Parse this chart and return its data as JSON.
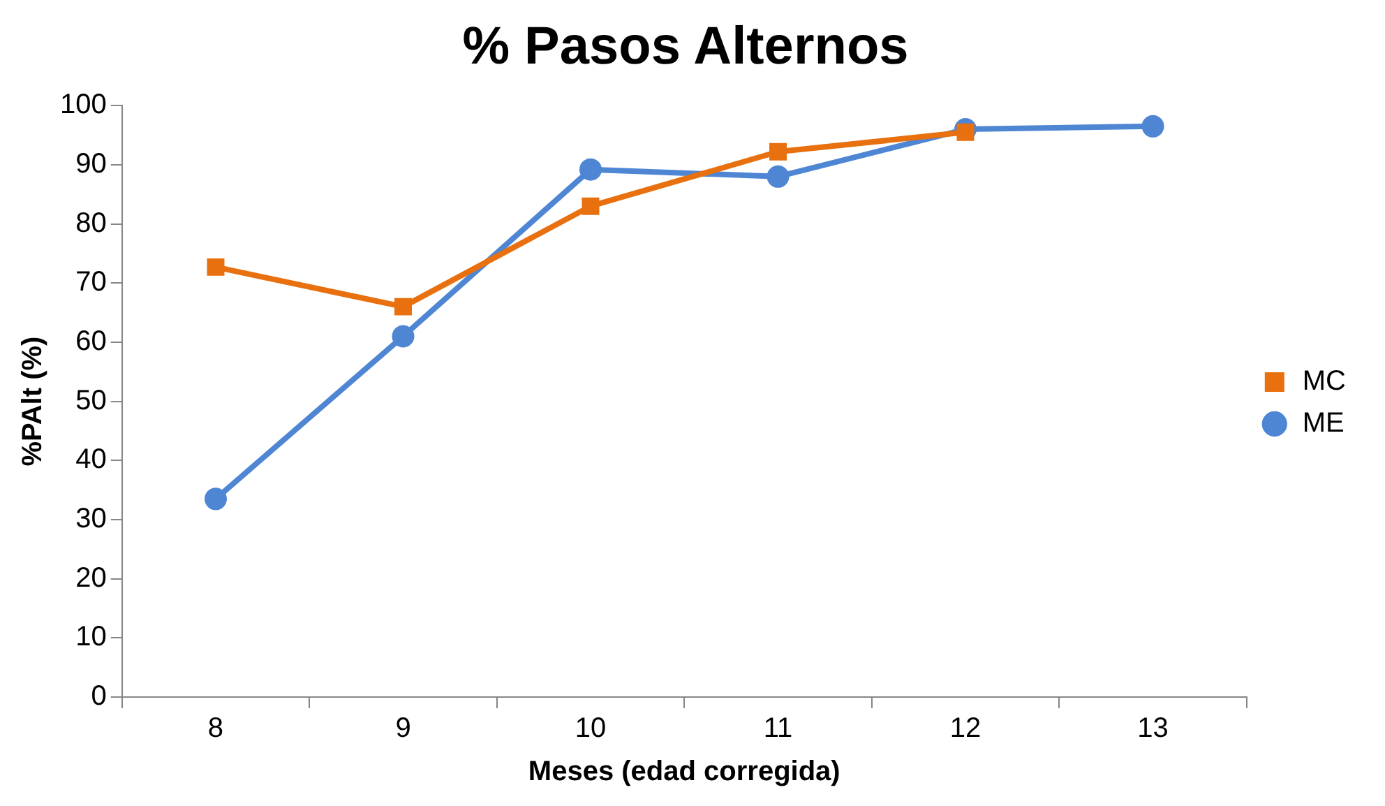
{
  "chart_data": {
    "type": "line",
    "title": "% Pasos Alternos",
    "xlabel": "Meses (edad corregida)",
    "ylabel": "%PAlt (%)",
    "categories": [
      "8",
      "9",
      "10",
      "11",
      "12",
      "13"
    ],
    "series": [
      {
        "name": "ME",
        "color": "#4f86d4",
        "marker": "circle",
        "values": [
          33.5,
          61,
          89.2,
          88,
          96,
          96.5
        ]
      },
      {
        "name": "MC",
        "color": "#e8700f",
        "marker": "square",
        "values": [
          72.7,
          66,
          83,
          92.2,
          95.5,
          null
        ]
      }
    ],
    "ylim": [
      0,
      100
    ],
    "yticks": [
      0,
      10,
      20,
      30,
      40,
      50,
      60,
      70,
      80,
      90,
      100
    ],
    "grid": false,
    "legend": "right",
    "line_style": "solid"
  }
}
